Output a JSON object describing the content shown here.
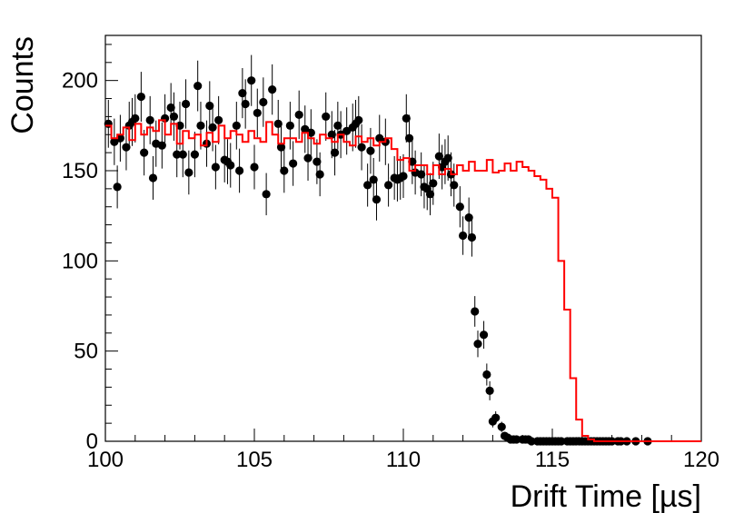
{
  "chart_data": {
    "type": "scatter",
    "title": "",
    "xlabel": "Drift Time [µs]",
    "ylabel": "Counts",
    "xlim": [
      100,
      120
    ],
    "ylim": [
      0,
      225
    ],
    "x_ticks": [
      100,
      105,
      110,
      115,
      120
    ],
    "y_ticks": [
      0,
      50,
      100,
      150,
      200
    ],
    "grid": false,
    "legend": "none",
    "colors": {
      "data": "#000000",
      "model": "#ff0000",
      "axes": "#000000"
    },
    "series": [
      {
        "style": "points-with-error-bars",
        "x": [
          100.1,
          100.3,
          100.4,
          100.5,
          100.7,
          100.8,
          100.9,
          101.0,
          101.2,
          101.3,
          101.5,
          101.6,
          101.7,
          101.9,
          102.0,
          102.2,
          102.3,
          102.4,
          102.5,
          102.6,
          102.7,
          102.8,
          103.0,
          103.1,
          103.2,
          103.4,
          103.5,
          103.6,
          103.7,
          103.8,
          104.0,
          104.1,
          104.2,
          104.4,
          104.5,
          104.6,
          104.7,
          104.9,
          105.0,
          105.1,
          105.3,
          105.4,
          105.6,
          105.8,
          105.9,
          106.0,
          106.2,
          106.3,
          106.5,
          106.7,
          106.8,
          106.9,
          107.1,
          107.2,
          107.4,
          107.6,
          107.7,
          107.8,
          107.9,
          108.1,
          108.3,
          108.4,
          108.5,
          108.6,
          108.8,
          108.9,
          109.0,
          109.1,
          109.2,
          109.4,
          109.5,
          109.7,
          109.8,
          109.9,
          110.0,
          110.1,
          110.2,
          110.3,
          110.4,
          110.6,
          110.7,
          110.8,
          110.9,
          111.0,
          111.2,
          111.3,
          111.4,
          111.5,
          111.6,
          111.7,
          111.9,
          112.0,
          112.2,
          112.3,
          112.4,
          112.5,
          112.7,
          112.8,
          112.9,
          113.0,
          113.1,
          113.3,
          113.4,
          113.5,
          113.6,
          113.7,
          113.8,
          114.0,
          114.1,
          114.2,
          114.3,
          114.5,
          114.6,
          114.7,
          114.8,
          114.9,
          115.0,
          115.1,
          115.2,
          115.3,
          115.5,
          115.6,
          115.7,
          115.8,
          115.9,
          116.0,
          116.1,
          116.2,
          116.3,
          116.4,
          116.5,
          116.6,
          116.7,
          116.8,
          116.9,
          117.0,
          117.2,
          117.3,
          117.5,
          117.8,
          118.2
        ],
        "values": [
          176,
          166,
          141,
          168,
          163,
          175,
          177,
          179,
          191,
          160,
          178,
          146,
          165,
          164,
          179,
          185,
          180,
          159,
          175,
          159,
          187,
          149,
          159,
          197,
          175,
          165,
          186,
          174,
          152,
          178,
          156,
          155,
          153,
          175,
          150,
          193,
          187,
          200,
          152,
          182,
          188,
          137,
          195,
          176,
          163,
          150,
          175,
          154,
          181,
          173,
          157,
          171,
          155,
          148,
          180,
          170,
          160,
          175,
          170,
          172,
          174,
          176,
          178,
          163,
          142,
          161,
          145,
          134,
          168,
          166,
          142,
          146,
          145,
          146,
          147,
          179,
          168,
          155,
          149,
          148,
          141,
          140,
          137,
          143,
          158,
          152,
          155,
          157,
          148,
          142,
          130,
          114,
          124,
          113,
          72,
          54,
          59,
          37,
          28,
          11,
          13,
          8,
          3,
          2,
          1,
          1,
          1,
          1,
          1,
          1,
          0,
          0,
          0,
          0,
          0,
          0,
          0,
          0,
          0,
          0,
          0,
          0,
          0,
          0,
          0,
          0,
          0,
          0,
          0,
          0,
          0,
          0,
          0,
          0,
          0,
          0,
          0,
          0,
          0,
          0,
          0
        ]
      },
      {
        "style": "step-histogram",
        "x": [
          100.0,
          100.2,
          100.4,
          100.6,
          100.8,
          101.0,
          101.2,
          101.4,
          101.6,
          101.8,
          102.0,
          102.2,
          102.4,
          102.6,
          102.8,
          103.0,
          103.2,
          103.4,
          103.6,
          103.8,
          104.0,
          104.2,
          104.4,
          104.6,
          104.8,
          105.0,
          105.2,
          105.4,
          105.6,
          105.8,
          106.0,
          106.2,
          106.4,
          106.6,
          106.8,
          107.0,
          107.2,
          107.4,
          107.6,
          107.8,
          108.0,
          108.2,
          108.4,
          108.6,
          108.8,
          109.0,
          109.2,
          109.4,
          109.6,
          109.8,
          110.0,
          110.2,
          110.4,
          110.6,
          110.8,
          111.0,
          111.2,
          111.4,
          111.6,
          111.8,
          112.0,
          112.2,
          112.4,
          112.6,
          112.8,
          113.0,
          113.2,
          113.4,
          113.6,
          113.8,
          114.0,
          114.2,
          114.4,
          114.6,
          114.8,
          115.0,
          115.2,
          115.4,
          115.6,
          115.8,
          116.0,
          116.2,
          116.4,
          116.6,
          116.8,
          117.0,
          118.0,
          119.0
        ],
        "values": [
          175,
          168,
          170,
          174,
          167,
          176,
          170,
          174,
          172,
          178,
          170,
          176,
          165,
          172,
          168,
          170,
          164,
          171,
          166,
          175,
          168,
          172,
          170,
          166,
          172,
          168,
          166,
          177,
          170,
          165,
          168,
          168,
          166,
          171,
          168,
          165,
          170,
          168,
          166,
          170,
          166,
          164,
          169,
          166,
          168,
          164,
          166,
          168,
          162,
          156,
          157,
          150,
          153,
          153,
          148,
          153,
          148,
          151,
          148,
          153,
          150,
          155,
          150,
          150,
          156,
          149,
          150,
          154,
          150,
          155,
          152,
          150,
          147,
          145,
          140,
          135,
          100,
          73,
          35,
          12,
          3,
          1,
          0,
          0,
          0,
          0,
          0,
          0
        ]
      }
    ]
  }
}
